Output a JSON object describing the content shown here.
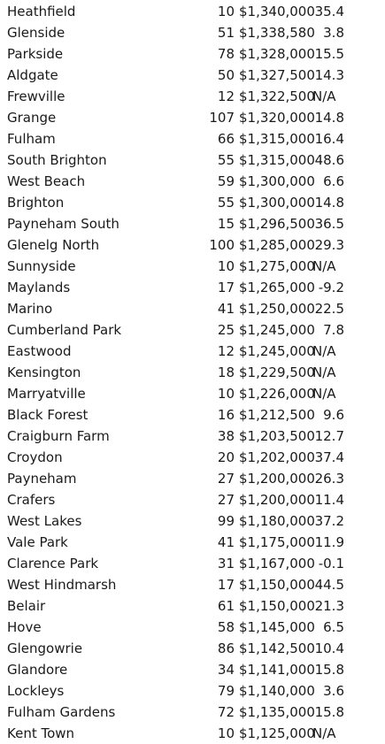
{
  "rows": [
    {
      "suburb": "Heathfield",
      "sales": "10",
      "price": "$1,340,000",
      "growth": "35.4"
    },
    {
      "suburb": "Glenside",
      "sales": "51",
      "price": "$1,338,580",
      "growth": "3.8"
    },
    {
      "suburb": "Parkside",
      "sales": "78",
      "price": "$1,328,000",
      "growth": "15.5"
    },
    {
      "suburb": "Aldgate",
      "sales": "50",
      "price": "$1,327,500",
      "growth": "14.3"
    },
    {
      "suburb": "Frewville",
      "sales": "12",
      "price": "$1,322,500",
      "growth": "N/A"
    },
    {
      "suburb": "Grange",
      "sales": "107",
      "price": "$1,320,000",
      "growth": "14.8"
    },
    {
      "suburb": "Fulham",
      "sales": "66",
      "price": "$1,315,000",
      "growth": "16.4"
    },
    {
      "suburb": "South Brighton",
      "sales": "55",
      "price": "$1,315,000",
      "growth": "48.6"
    },
    {
      "suburb": "West Beach",
      "sales": "59",
      "price": "$1,300,000",
      "growth": "6.6"
    },
    {
      "suburb": "Brighton",
      "sales": "55",
      "price": "$1,300,000",
      "growth": "14.8"
    },
    {
      "suburb": "Payneham South",
      "sales": "15",
      "price": "$1,296,500",
      "growth": "36.5"
    },
    {
      "suburb": "Glenelg North",
      "sales": "100",
      "price": "$1,285,000",
      "growth": "29.3"
    },
    {
      "suburb": "Sunnyside",
      "sales": "10",
      "price": "$1,275,000",
      "growth": "N/A"
    },
    {
      "suburb": "Maylands",
      "sales": "17",
      "price": "$1,265,000",
      "growth": "-9.2"
    },
    {
      "suburb": "Marino",
      "sales": "41",
      "price": "$1,250,000",
      "growth": "22.5"
    },
    {
      "suburb": "Cumberland Park",
      "sales": "25",
      "price": "$1,245,000",
      "growth": "7.8"
    },
    {
      "suburb": "Eastwood",
      "sales": "12",
      "price": "$1,245,000",
      "growth": "N/A"
    },
    {
      "suburb": "Kensington",
      "sales": "18",
      "price": "$1,229,500",
      "growth": "N/A"
    },
    {
      "suburb": "Marryatville",
      "sales": "10",
      "price": "$1,226,000",
      "growth": "N/A"
    },
    {
      "suburb": "Black Forest",
      "sales": "16",
      "price": "$1,212,500",
      "growth": "9.6"
    },
    {
      "suburb": "Craigburn Farm",
      "sales": "38",
      "price": "$1,203,500",
      "growth": "12.7"
    },
    {
      "suburb": "Croydon",
      "sales": "20",
      "price": "$1,202,000",
      "growth": "37.4"
    },
    {
      "suburb": "Payneham",
      "sales": "27",
      "price": "$1,200,000",
      "growth": "26.3"
    },
    {
      "suburb": "Crafers",
      "sales": "27",
      "price": "$1,200,000",
      "growth": "11.4"
    },
    {
      "suburb": "West Lakes",
      "sales": "99",
      "price": "$1,180,000",
      "growth": "37.2"
    },
    {
      "suburb": "Vale Park",
      "sales": "41",
      "price": "$1,175,000",
      "growth": "11.9"
    },
    {
      "suburb": "Clarence Park",
      "sales": "31",
      "price": "$1,167,000",
      "growth": "-0.1"
    },
    {
      "suburb": "West Hindmarsh",
      "sales": "17",
      "price": "$1,150,000",
      "growth": "44.5"
    },
    {
      "suburb": "Belair",
      "sales": "61",
      "price": "$1,150,000",
      "growth": "21.3"
    },
    {
      "suburb": "Hove",
      "sales": "58",
      "price": "$1,145,000",
      "growth": "6.5"
    },
    {
      "suburb": "Glengowrie",
      "sales": "86",
      "price": "$1,142,500",
      "growth": "10.4"
    },
    {
      "suburb": "Glandore",
      "sales": "34",
      "price": "$1,141,000",
      "growth": "15.8"
    },
    {
      "suburb": "Lockleys",
      "sales": "79",
      "price": "$1,140,000",
      "growth": "3.6"
    },
    {
      "suburb": "Fulham Gardens",
      "sales": "72",
      "price": "$1,135,000",
      "growth": "15.8"
    },
    {
      "suburb": "Kent Town",
      "sales": "10",
      "price": "$1,125,000",
      "growth": "N/A"
    }
  ]
}
